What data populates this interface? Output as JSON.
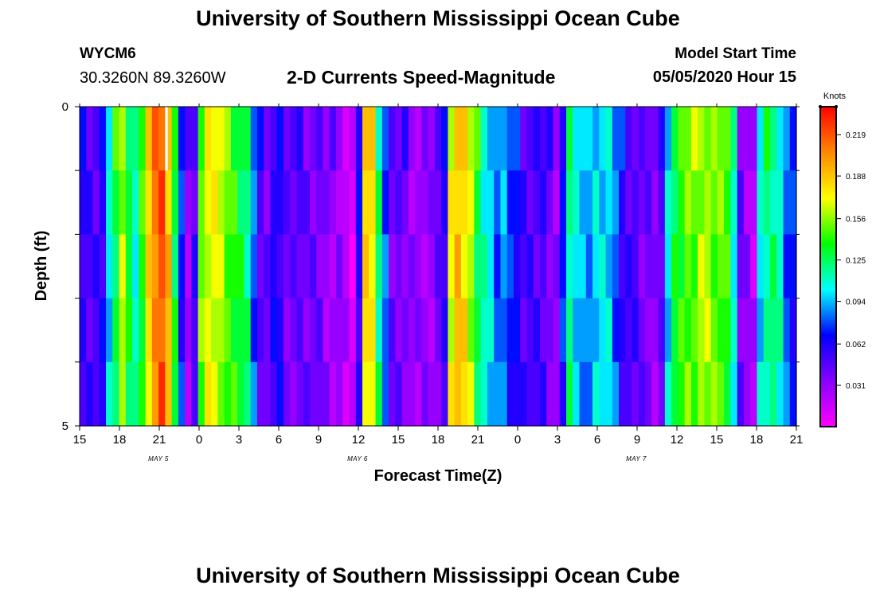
{
  "header": {
    "title": "University of Southern Mississippi Ocean Cube",
    "station_id": "WYCM6",
    "station_coords": "30.3260N 89.3260W",
    "subtitle": "2-D Currents Speed-Magnitude",
    "model_label": "Model Start Time",
    "model_time": "05/05/2020 Hour 15"
  },
  "footer": {
    "title": "University of Southern Mississippi Ocean Cube"
  },
  "chart_data": {
    "type": "heatmap",
    "title": "2-D Currents Speed-Magnitude",
    "xlabel": "Forecast Time(Z)",
    "ylabel": "Depth (ft)",
    "ylim": [
      0,
      5
    ],
    "y_tick_labels": [
      "0",
      "5"
    ],
    "x_tick_labels": [
      "15",
      "18",
      "21",
      "0",
      "3",
      "6",
      "9",
      "12",
      "15",
      "18",
      "21",
      "0",
      "3",
      "6",
      "9",
      "12",
      "15",
      "18",
      "21"
    ],
    "date_labels": [
      {
        "label": "MAY 5",
        "at_tick": 2
      },
      {
        "label": "MAY 6",
        "at_tick": 7
      },
      {
        "label": "MAY 7",
        "at_tick": 14
      }
    ],
    "colorbar": {
      "unit": "Knots",
      "min": 0.0,
      "max": 0.24,
      "ticks": [
        "0.219",
        "0.188",
        "0.156",
        "0.125",
        "0.094",
        "0.062",
        "0.031"
      ],
      "tick_values": [
        0.219,
        0.188,
        0.156,
        0.125,
        0.094,
        0.062,
        0.031
      ],
      "colors": [
        "#ff00ff",
        "#8800ff",
        "#0000ff",
        "#00ffff",
        "#00ff00",
        "#ffff00",
        "#ff8800",
        "#ff0000"
      ]
    },
    "depth_levels": 5,
    "hour_step": 1,
    "speed_profile": [
      0.06,
      0.05,
      0.05,
      0.06,
      0.1,
      0.13,
      0.16,
      0.13,
      0.11,
      0.14,
      0.18,
      0.21,
      0.22,
      0.19,
      0.13,
      0.07,
      0.03,
      0.05,
      0.15,
      0.17,
      0.17,
      0.16,
      0.15,
      0.14,
      0.13,
      0.12,
      0.08,
      0.05,
      0.04,
      0.06,
      0.06,
      0.04,
      0.04,
      0.05,
      0.04,
      0.04,
      0.04,
      0.03,
      0.03,
      0.03,
      0.02,
      0.01,
      0.06,
      0.18,
      0.18,
      0.12,
      0.08,
      0.04,
      0.04,
      0.04,
      0.03,
      0.03,
      0.03,
      0.03,
      0.04,
      0.06,
      0.17,
      0.19,
      0.18,
      0.16,
      0.13,
      0.11,
      0.1,
      0.08,
      0.09,
      0.07,
      0.07,
      0.05,
      0.05,
      0.05,
      0.05,
      0.04,
      0.03,
      0.07,
      0.12,
      0.1,
      0.09,
      0.09,
      0.1,
      0.1,
      0.1,
      0.08,
      0.06,
      0.05,
      0.05,
      0.04,
      0.04,
      0.03,
      0.05,
      0.1,
      0.13,
      0.14,
      0.15,
      0.15,
      0.16,
      0.16,
      0.15,
      0.15,
      0.14,
      0.11,
      0.04,
      0.03,
      0.02,
      0.1,
      0.12,
      0.12,
      0.11,
      0.08,
      0.07
    ],
    "depth_variation": [
      [
        0.01,
        -0.01,
        0.0,
        0.01,
        0.0,
        0.02,
        0.0,
        -0.01,
        0.01,
        0.0,
        0.01
      ],
      [
        0.0,
        0.01,
        -0.01,
        0.0,
        0.01,
        0.0,
        -0.01,
        0.0,
        0.0,
        0.01,
        0.0
      ],
      [
        -0.01,
        0.0,
        0.01,
        -0.01,
        0.0,
        -0.01,
        0.01,
        0.0,
        -0.01,
        0.0,
        0.01
      ],
      [
        0.0,
        -0.01,
        0.0,
        0.01,
        -0.01,
        0.0,
        0.0,
        0.01,
        0.0,
        -0.01,
        0.0
      ],
      [
        -0.01,
        0.01,
        0.0,
        0.0,
        0.01,
        -0.01,
        0.0,
        -0.01,
        0.01,
        0.0,
        -0.01
      ]
    ],
    "missing_cells": [
      {
        "hour": 13,
        "depth_level": 0
      }
    ]
  }
}
